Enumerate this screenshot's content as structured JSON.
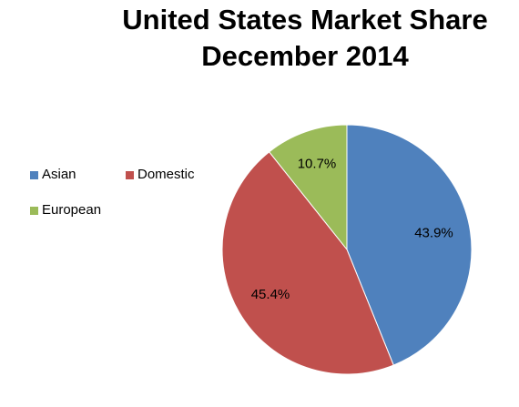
{
  "chart_data": {
    "type": "pie",
    "title": [
      "United States Market Share",
      "December 2014"
    ],
    "categories": [
      "Asian",
      "Domestic",
      "European"
    ],
    "values": [
      43.9,
      45.4,
      10.7
    ],
    "labels": [
      "43.9%",
      "45.4%",
      "10.7%"
    ],
    "colors": [
      "#4F81BD",
      "#C0504D",
      "#9BBB59"
    ],
    "legend_placement": "left",
    "start_angle": "12 o'clock, clockwise"
  }
}
